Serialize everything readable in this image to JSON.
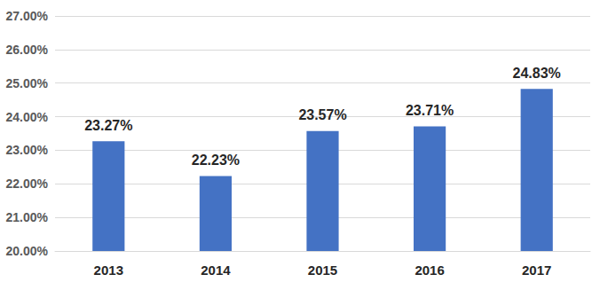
{
  "chart_data": {
    "type": "bar",
    "categories": [
      "2013",
      "2014",
      "2015",
      "2016",
      "2017"
    ],
    "values": [
      23.27,
      22.23,
      23.57,
      23.71,
      24.83
    ],
    "value_labels": [
      "23.27%",
      "22.23%",
      "23.57%",
      "23.71%",
      "24.83%"
    ],
    "color": "#4472c4",
    "ylim": [
      20,
      27
    ],
    "yticks": [
      {
        "value": 20,
        "label": "20.00%"
      },
      {
        "value": 21,
        "label": "21.00%"
      },
      {
        "value": 22,
        "label": "22.00%"
      },
      {
        "value": 23,
        "label": "23.00%"
      },
      {
        "value": 24,
        "label": "24.00%"
      },
      {
        "value": 25,
        "label": "25.00%"
      },
      {
        "value": 26,
        "label": "26.00%"
      },
      {
        "value": 27,
        "label": "27.00%"
      }
    ],
    "grid": true,
    "data_labels": true
  }
}
